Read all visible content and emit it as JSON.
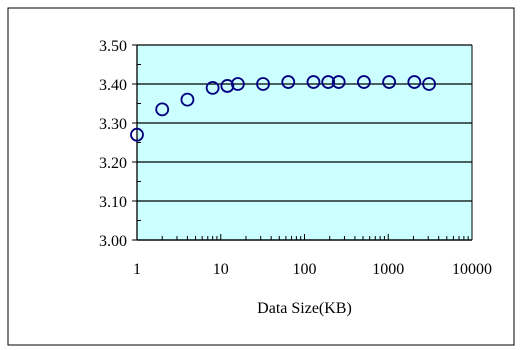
{
  "chart_data": {
    "type": "scatter",
    "title": "",
    "xlabel": "Data Size(KB)",
    "ylabel": "",
    "x_scale": "log",
    "xlim": [
      1,
      10000
    ],
    "ylim": [
      3.0,
      3.5
    ],
    "grid": "horizontal major",
    "legend": "none",
    "x_tick_labels": [
      "1",
      "10",
      "100",
      "1000",
      "10000"
    ],
    "y_tick_labels": [
      "3.00",
      "3.10",
      "3.20",
      "3.30",
      "3.40",
      "3.50"
    ],
    "series": [
      {
        "x": [
          1,
          2,
          4,
          8,
          12,
          16,
          32,
          64,
          128,
          192,
          256,
          512,
          1024,
          2048,
          3072
        ],
        "y": [
          3.27,
          3.335,
          3.36,
          3.39,
          3.395,
          3.4,
          3.4,
          3.405,
          3.405,
          3.405,
          3.405,
          3.405,
          3.405,
          3.405,
          3.4
        ],
        "marker": "open-circle"
      }
    ]
  },
  "colors": {
    "plot_background": "#ccffff",
    "marker_stroke": "#000080",
    "axis": "#000000",
    "gridline": "#000000",
    "outer_border": "#000000"
  }
}
